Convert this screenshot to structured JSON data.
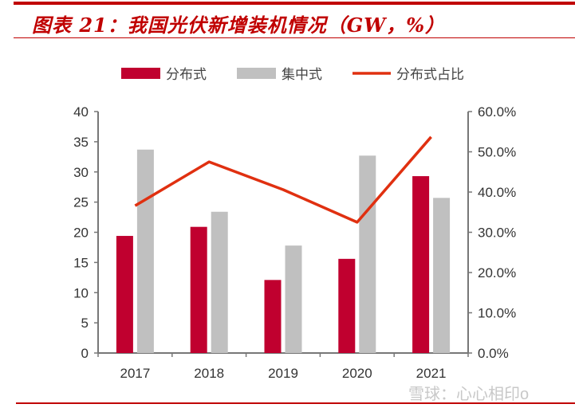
{
  "title": "图表 21：我国光伏新增装机情况（GW，%）",
  "watermark": "雪球：心心相印o",
  "chart_data": {
    "type": "bar",
    "title": "图表 21：我国光伏新增装机情况（GW，%）",
    "categories": [
      "2017",
      "2018",
      "2019",
      "2020",
      "2021"
    ],
    "series": [
      {
        "name": "分布式",
        "type": "bar",
        "axis": "left",
        "color": "#c0002f",
        "values": [
          19.4,
          20.9,
          12.1,
          15.6,
          29.3
        ]
      },
      {
        "name": "集中式",
        "type": "bar",
        "axis": "left",
        "color": "#c0c0c0",
        "values": [
          33.7,
          23.4,
          17.8,
          32.7,
          25.7
        ]
      },
      {
        "name": "分布式占比",
        "type": "line",
        "axis": "right",
        "color": "#e03010",
        "values": [
          36.6,
          47.5,
          40.6,
          32.5,
          53.7
        ]
      }
    ],
    "ylim": [
      0,
      40
    ],
    "yticks": [
      "0",
      "5",
      "10",
      "15",
      "20",
      "25",
      "30",
      "35",
      "40"
    ],
    "y2lim": [
      0,
      60
    ],
    "y2ticks": [
      "0.0%",
      "10.0%",
      "20.0%",
      "30.0%",
      "40.0%",
      "50.0%",
      "60.0%"
    ],
    "grid": false,
    "legend": "top"
  }
}
